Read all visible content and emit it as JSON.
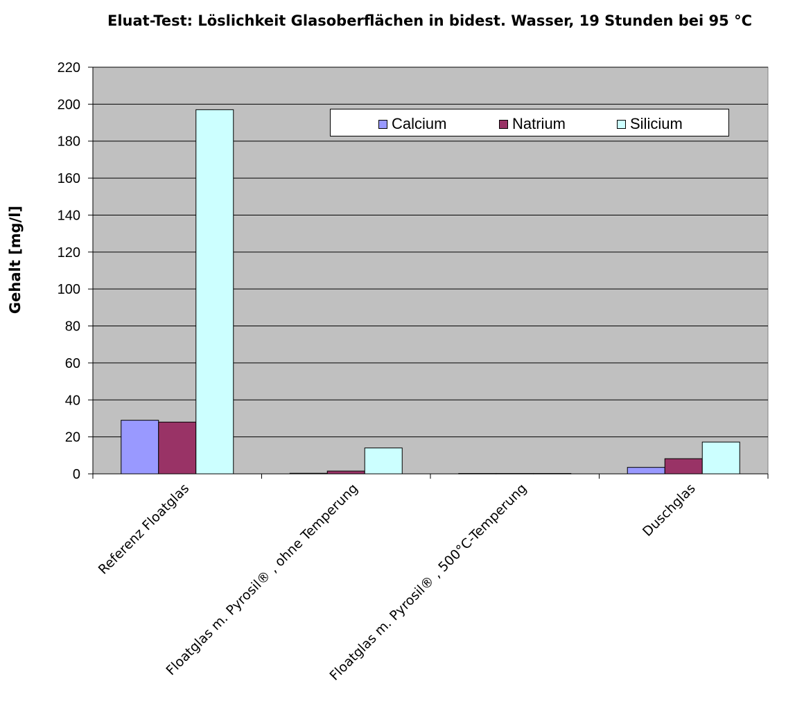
{
  "chart_data": {
    "type": "bar",
    "title": "Eluat-Test: Löslichkeit Glasoberflächen in bidest. Wasser, 19 Stunden bei 95 °C",
    "xlabel": "",
    "ylabel": "Gehalt [mg/l]",
    "ylim": [
      0,
      220
    ],
    "yticks": [
      0,
      20,
      40,
      60,
      80,
      100,
      120,
      140,
      160,
      180,
      200,
      220
    ],
    "grid": true,
    "legend_position": "top-right",
    "categories": [
      "Referenz Floatglas",
      "Floatglas m. Pyrosil® , ohne Temperung",
      "Floatglas m. Pyrosil® , 500°C-Temperung",
      "Duschglas"
    ],
    "series": [
      {
        "name": "Calcium",
        "color": "#9999ff",
        "values": [
          29,
          0.3,
          0.2,
          3.5
        ]
      },
      {
        "name": "Natrium",
        "color": "#993366",
        "values": [
          28,
          1.5,
          0.2,
          8.2
        ]
      },
      {
        "name": "Silicium",
        "color": "#ccffff",
        "values": [
          197,
          14,
          0.2,
          17.2
        ]
      }
    ],
    "plot_background": "#c0c0c0"
  }
}
